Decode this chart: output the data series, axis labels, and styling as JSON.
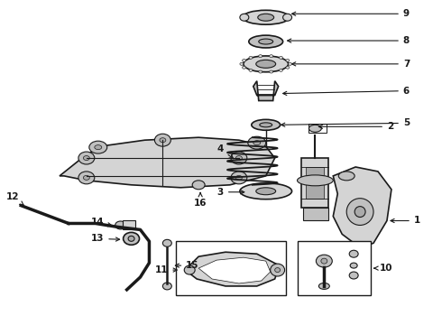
{
  "bg_color": "#ffffff",
  "line_color": "#1a1a1a",
  "fig_width": 4.9,
  "fig_height": 3.6,
  "dpi": 100,
  "label_fontsize": 7.5,
  "lw_main": 1.2,
  "lw_thin": 0.8,
  "gray_fill": "#d4d4d4",
  "gray_dark": "#aaaaaa",
  "gray_mid": "#c0c0c0"
}
